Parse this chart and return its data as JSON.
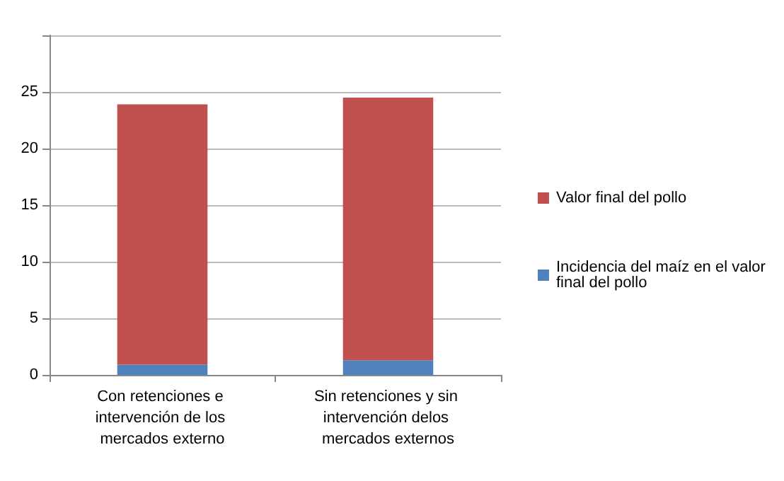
{
  "chart_data": {
    "type": "bar",
    "stacked": true,
    "categories": [
      "Con retenciones e intervención de los mercados externo",
      "Sin retenciones y sin intervención delos mercados externos"
    ],
    "series": [
      {
        "name": "Incidencia del maíz en el valor final del pollo",
        "color": "#4f81bd",
        "values": [
          0.9,
          1.3
        ]
      },
      {
        "name": "Valor final del pollo",
        "color": "#c0504d",
        "values": [
          23,
          23.2
        ]
      }
    ],
    "ylim": [
      0,
      30
    ],
    "yticks": [
      0,
      5,
      10,
      15,
      20,
      25,
      {
        "value": 30,
        "label": null
      }
    ],
    "grid": "y",
    "legend": "right"
  }
}
